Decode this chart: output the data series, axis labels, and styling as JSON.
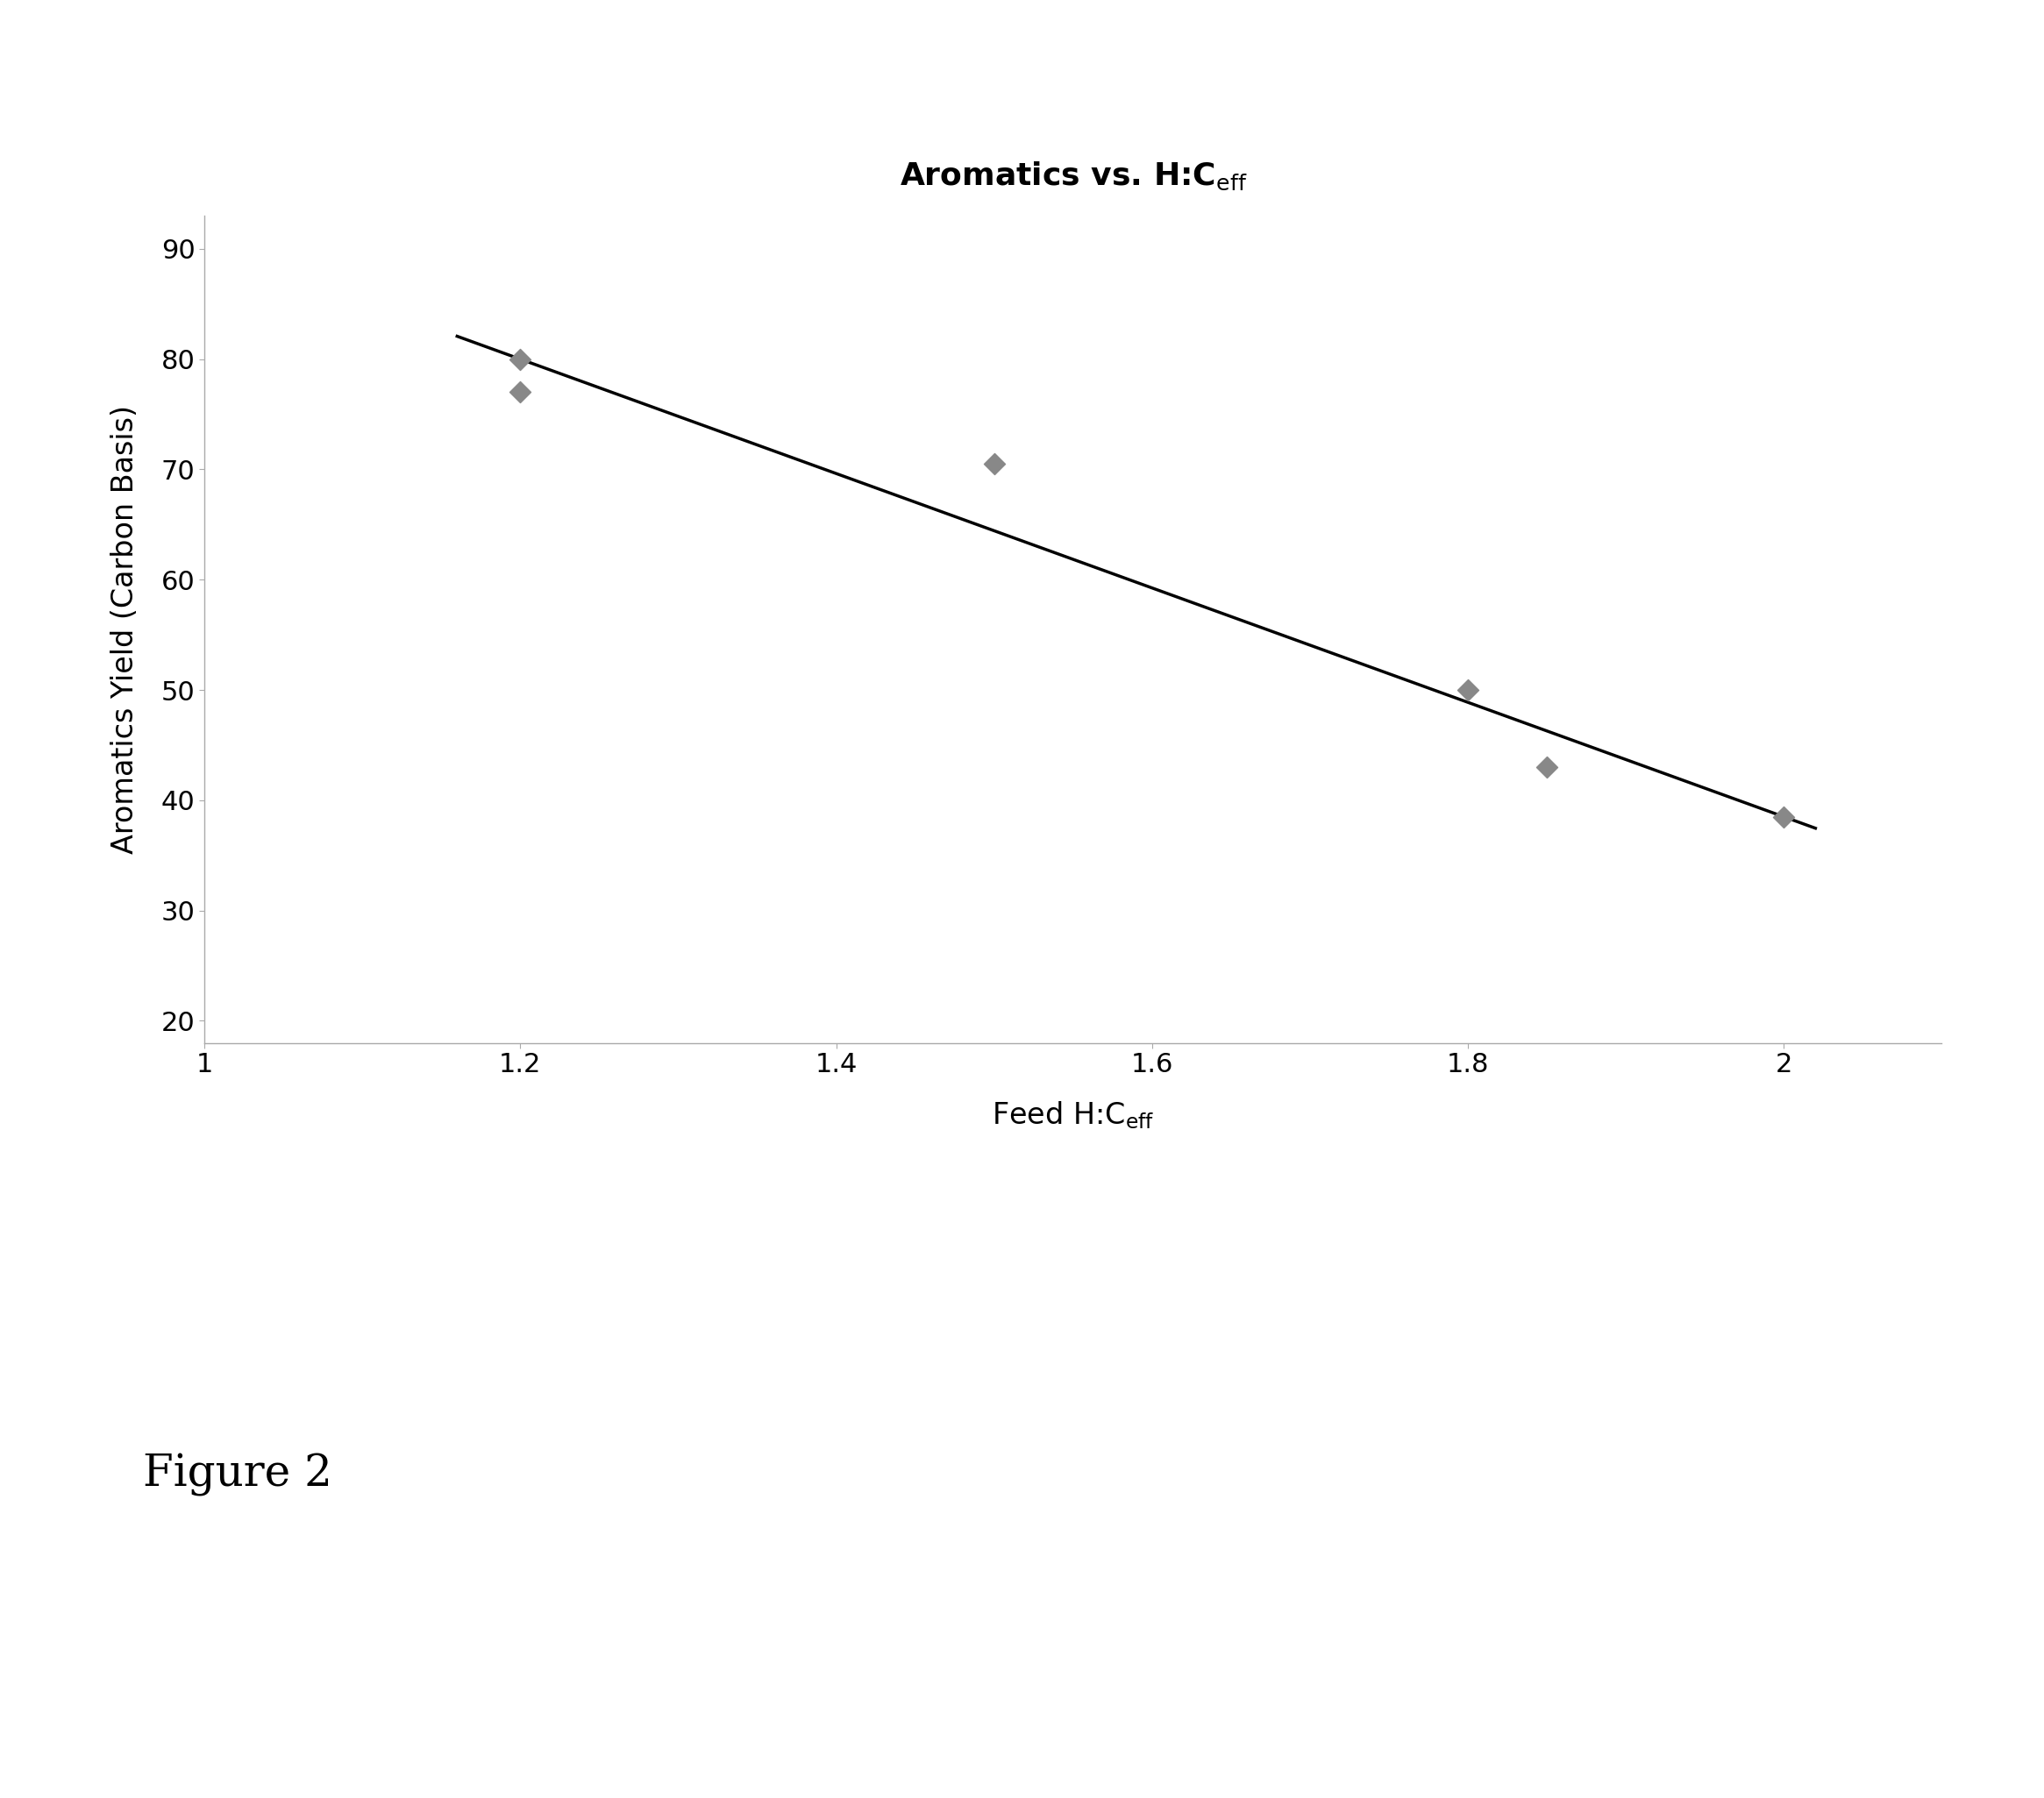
{
  "title": "Aromatics vs. H:C$_{\\mathrm{eff}}$",
  "xlabel": "Feed H:C$_{\\mathrm{eff}}$",
  "ylabel": "Aromatics Yield (Carbon Basis)",
  "figure_caption": "Figure 2",
  "x_data": [
    1.2,
    1.2,
    1.5,
    1.8,
    1.85,
    2.0
  ],
  "y_data": [
    80.0,
    77.0,
    70.5,
    50.0,
    43.0,
    38.5
  ],
  "scatter_color": "#888888",
  "line_color": "#000000",
  "line_x_start": 1.16,
  "line_x_end": 2.02,
  "line_slope": -51.875,
  "line_intercept": 142.25,
  "xlim": [
    1.0,
    2.1
  ],
  "ylim": [
    18,
    93
  ],
  "xticks": [
    1.0,
    1.2,
    1.4,
    1.6,
    1.8,
    2.0
  ],
  "yticks": [
    20,
    30,
    40,
    50,
    60,
    70,
    80,
    90
  ],
  "xtick_labels": [
    "1",
    "1.2",
    "1.4",
    "1.6",
    "1.8",
    "2"
  ],
  "ytick_labels": [
    "20",
    "30",
    "40",
    "50",
    "60",
    "70",
    "80",
    "90"
  ],
  "background_color": "#ffffff",
  "title_fontsize": 26,
  "label_fontsize": 24,
  "tick_fontsize": 22,
  "caption_fontsize": 36,
  "marker_size": 150,
  "line_width": 2.5,
  "spine_color": "#aaaaaa"
}
